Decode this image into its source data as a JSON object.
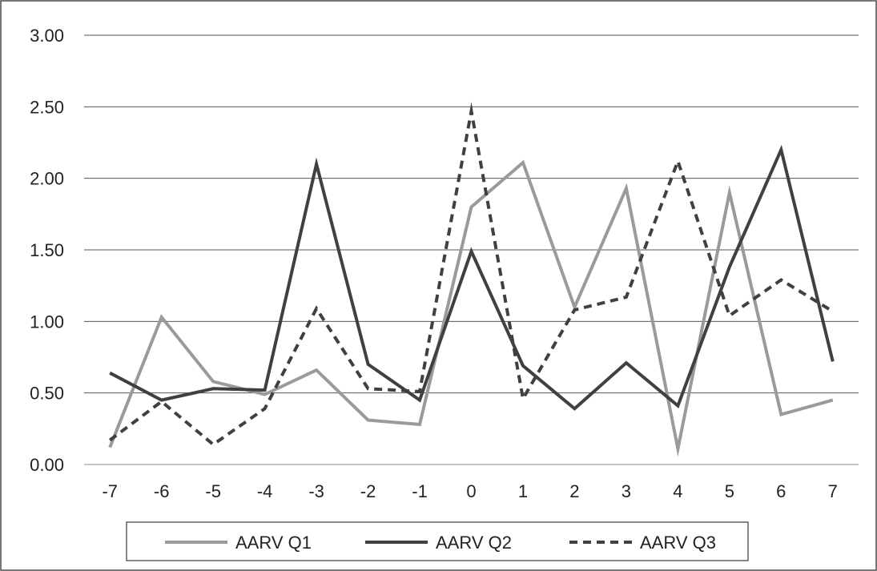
{
  "chart_data": {
    "type": "line",
    "title": "",
    "xlabel": "",
    "ylabel": "",
    "categories": [
      "-7",
      "-6",
      "-5",
      "-4",
      "-3",
      "-2",
      "-1",
      "0",
      "1",
      "2",
      "3",
      "4",
      "5",
      "6",
      "7"
    ],
    "ylim": [
      0,
      3
    ],
    "y_ticks": [
      "0.00",
      "0.50",
      "1.00",
      "1.50",
      "2.00",
      "2.50",
      "3.00"
    ],
    "grid": "horizontal",
    "legend_position": "bottom",
    "series": [
      {
        "name": "AARV Q1",
        "color": "#9a9a9a",
        "dash": "solid",
        "values": [
          0.12,
          1.03,
          0.58,
          0.49,
          0.66,
          0.31,
          0.28,
          1.8,
          2.11,
          1.1,
          1.93,
          0.11,
          1.9,
          0.35,
          0.45
        ]
      },
      {
        "name": "AARV Q2",
        "color": "#404040",
        "dash": "solid",
        "values": [
          0.64,
          0.45,
          0.53,
          0.52,
          2.1,
          0.7,
          0.45,
          1.49,
          0.69,
          0.39,
          0.71,
          0.41,
          1.38,
          2.2,
          0.72
        ]
      },
      {
        "name": "AARV Q3",
        "color": "#404040",
        "dash": "dashed",
        "values": [
          0.17,
          0.44,
          0.14,
          0.39,
          1.09,
          0.53,
          0.51,
          2.47,
          0.46,
          1.08,
          1.17,
          2.12,
          1.04,
          1.29,
          1.07
        ]
      }
    ]
  }
}
